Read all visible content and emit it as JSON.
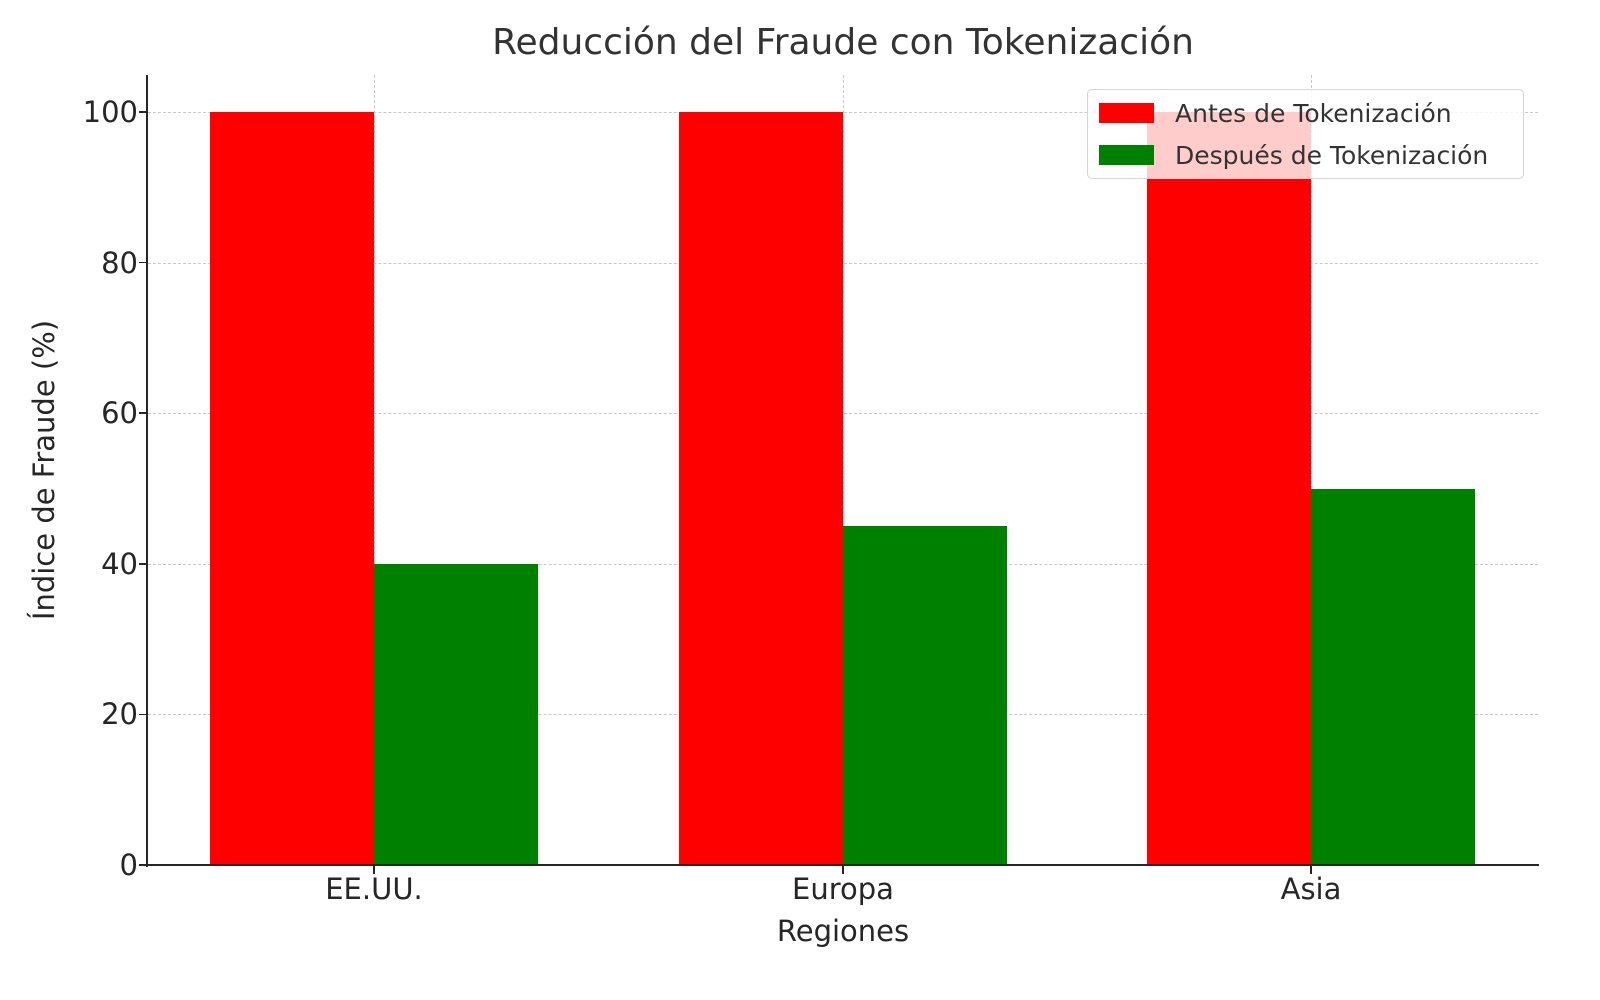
{
  "chart_data": {
    "type": "bar",
    "title": "Reducción del Fraude con Tokenización",
    "xlabel": "Regiones",
    "ylabel": "Índice de Fraude (%)",
    "categories": [
      "EE.UU.",
      "Europa",
      "Asia"
    ],
    "series": [
      {
        "name": "Antes de Tokenización",
        "color": "#ff0000",
        "values": [
          100,
          100,
          100
        ]
      },
      {
        "name": "Después de Tokenización",
        "color": "#008000",
        "values": [
          40,
          45,
          50
        ]
      }
    ],
    "ylim": [
      0,
      105
    ],
    "yticks": [
      "0",
      "20",
      "40",
      "60",
      "80",
      "100"
    ],
    "grid": true,
    "legend_position": "upper right"
  }
}
